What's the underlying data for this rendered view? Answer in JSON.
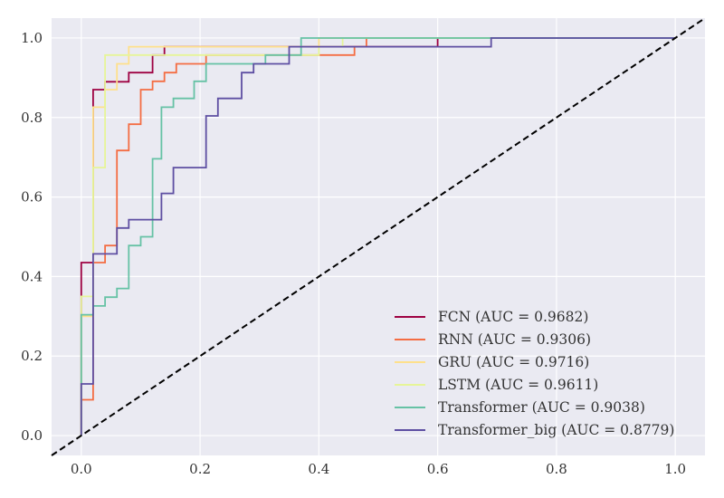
{
  "chart_data": {
    "type": "line",
    "title": "",
    "xlabel": "",
    "ylabel": "",
    "xlim": [
      -0.05,
      1.05
    ],
    "ylim": [
      -0.05,
      1.05
    ],
    "grid": true,
    "background": "#EAEAF2",
    "legend_position": "lower-right",
    "x_ticks": [
      "0.0",
      "0.2",
      "0.4",
      "0.6",
      "0.8",
      "1.0"
    ],
    "y_ticks": [
      "0.0",
      "0.2",
      "0.4",
      "0.6",
      "0.8",
      "1.0"
    ],
    "reference_line": {
      "x": [
        0,
        1
      ],
      "y": [
        0,
        1
      ],
      "style": "dashed",
      "color": "#000000"
    },
    "series": [
      {
        "name": "FCN (AUC = 0.9682)",
        "color": "#9E0142",
        "x": [
          0.0,
          0.0,
          0.0,
          0.0,
          0.0,
          0.02,
          0.02,
          0.04,
          0.04,
          0.08,
          0.08,
          0.12,
          0.12,
          0.14,
          0.14,
          0.6,
          0.6,
          1.0
        ],
        "y": [
          0.0,
          0.13,
          0.13,
          0.35,
          0.435,
          0.435,
          0.87,
          0.87,
          0.89,
          0.89,
          0.913,
          0.913,
          0.957,
          0.957,
          0.978,
          0.978,
          1.0,
          1.0
        ]
      },
      {
        "name": "RNN (AUC = 0.9306)",
        "color": "#F46D43",
        "x": [
          0.0,
          0.0,
          0.02,
          0.02,
          0.04,
          0.04,
          0.06,
          0.06,
          0.08,
          0.08,
          0.1,
          0.1,
          0.12,
          0.12,
          0.14,
          0.14,
          0.16,
          0.16,
          0.21,
          0.21,
          0.46,
          0.46,
          0.48,
          0.48,
          1.0
        ],
        "y": [
          0.0,
          0.09,
          0.09,
          0.435,
          0.435,
          0.478,
          0.478,
          0.717,
          0.717,
          0.783,
          0.783,
          0.87,
          0.87,
          0.891,
          0.891,
          0.913,
          0.913,
          0.935,
          0.935,
          0.957,
          0.957,
          0.978,
          0.978,
          1.0,
          1.0
        ]
      },
      {
        "name": "GRU (AUC = 0.9716)",
        "color": "#FEE08B",
        "x": [
          0.0,
          0.0,
          0.02,
          0.02,
          0.04,
          0.04,
          0.06,
          0.06,
          0.08,
          0.08,
          0.4,
          0.4,
          1.0
        ],
        "y": [
          0.0,
          0.3,
          0.3,
          0.826,
          0.826,
          0.87,
          0.87,
          0.935,
          0.935,
          0.978,
          0.978,
          1.0,
          1.0
        ]
      },
      {
        "name": "LSTM (AUC = 0.9611)",
        "color": "#E6F598",
        "x": [
          0.0,
          0.0,
          0.02,
          0.02,
          0.04,
          0.04,
          0.4,
          0.4,
          0.44,
          0.44,
          1.0
        ],
        "y": [
          0.0,
          0.35,
          0.35,
          0.674,
          0.674,
          0.957,
          0.957,
          0.978,
          0.978,
          1.0,
          1.0
        ]
      },
      {
        "name": "Transformer (AUC = 0.9038)",
        "color": "#66C2A5",
        "x": [
          0.0,
          0.0,
          0.02,
          0.02,
          0.04,
          0.04,
          0.06,
          0.06,
          0.08,
          0.08,
          0.1,
          0.1,
          0.12,
          0.12,
          0.135,
          0.135,
          0.155,
          0.155,
          0.19,
          0.19,
          0.21,
          0.21,
          0.31,
          0.31,
          0.37,
          0.37,
          1.0
        ],
        "y": [
          0.0,
          0.304,
          0.304,
          0.326,
          0.326,
          0.348,
          0.348,
          0.37,
          0.37,
          0.478,
          0.478,
          0.5,
          0.5,
          0.696,
          0.696,
          0.826,
          0.826,
          0.848,
          0.848,
          0.891,
          0.891,
          0.935,
          0.935,
          0.957,
          0.957,
          1.0,
          1.0
        ]
      },
      {
        "name": "Transformer_big (AUC = 0.8779)",
        "color": "#5E4FA2",
        "x": [
          0.0,
          0.0,
          0.02,
          0.02,
          0.06,
          0.06,
          0.08,
          0.08,
          0.135,
          0.135,
          0.155,
          0.155,
          0.21,
          0.21,
          0.23,
          0.23,
          0.27,
          0.27,
          0.29,
          0.29,
          0.35,
          0.35,
          0.69,
          0.69,
          1.0
        ],
        "y": [
          0.0,
          0.13,
          0.13,
          0.457,
          0.457,
          0.522,
          0.522,
          0.543,
          0.543,
          0.609,
          0.609,
          0.674,
          0.674,
          0.804,
          0.804,
          0.848,
          0.848,
          0.913,
          0.913,
          0.935,
          0.935,
          0.978,
          0.978,
          1.0,
          1.0
        ]
      }
    ]
  }
}
